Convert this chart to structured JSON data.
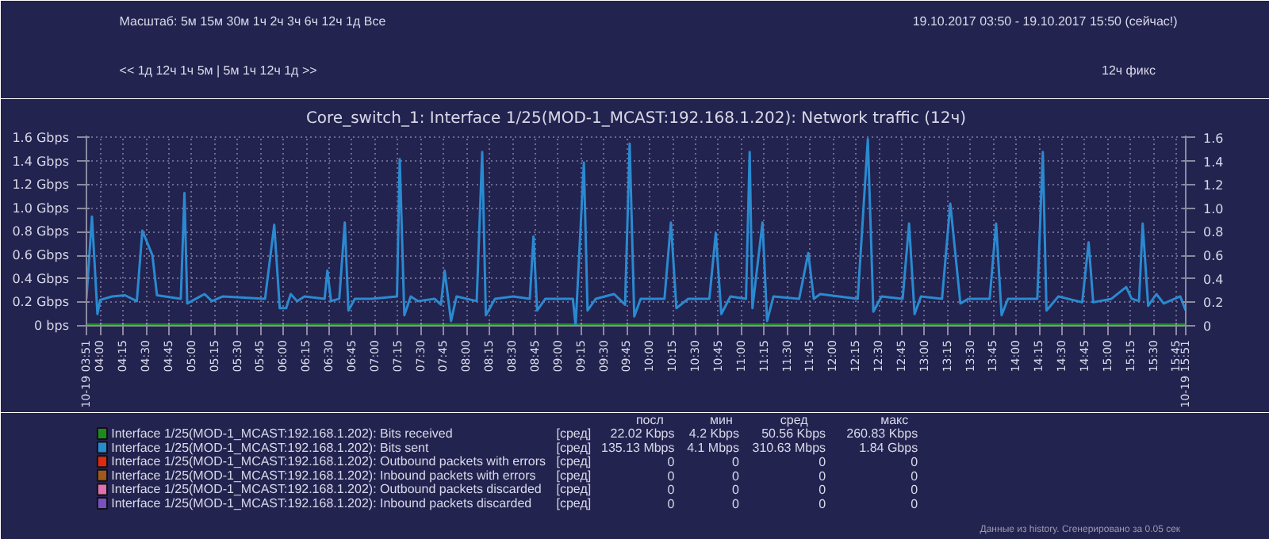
{
  "chart_data": {
    "type": "line",
    "title": "Core_switch_1: Interface 1/25(MOD-1_MCAST:192.168.1.202): Network traffic (12ч)",
    "xlim": [
      3.85,
      15.85
    ],
    "ylim": [
      0,
      1.62
    ],
    "y2lim": [
      0,
      1.62
    ],
    "yticks": [
      {
        "value": 0,
        "label": "0 bps"
      },
      {
        "value": 0.2,
        "label": "0.2 Gbps"
      },
      {
        "value": 0.4,
        "label": "0.4 Gbps"
      },
      {
        "value": 0.6,
        "label": "0.6 Gbps"
      },
      {
        "value": 0.8,
        "label": "0.8 Gbps"
      },
      {
        "value": 1.0,
        "label": "1.0 Gbps"
      },
      {
        "value": 1.2,
        "label": "1.2 Gbps"
      },
      {
        "value": 1.4,
        "label": "1.4 Gbps"
      },
      {
        "value": 1.6,
        "label": "1.6 Gbps"
      }
    ],
    "y2ticks": [
      0,
      0.2,
      0.4,
      0.6,
      0.8,
      {
        "value": 1.0,
        "label": "1.0"
      },
      1.2,
      1.4,
      1.6
    ],
    "xticks": [
      {
        "value": 3.85,
        "label": "10-19 03:51"
      },
      {
        "value": 4.0,
        "label": "04:00"
      },
      {
        "value": 4.25,
        "label": "04:15"
      },
      {
        "value": 4.5,
        "label": "04:30"
      },
      {
        "value": 4.75,
        "label": "04:45"
      },
      {
        "value": 5.0,
        "label": "05:00"
      },
      {
        "value": 5.25,
        "label": "05:15"
      },
      {
        "value": 5.5,
        "label": "05:30"
      },
      {
        "value": 5.75,
        "label": "05:45"
      },
      {
        "value": 6.0,
        "label": "06:00"
      },
      {
        "value": 6.25,
        "label": "06:15"
      },
      {
        "value": 6.5,
        "label": "06:30"
      },
      {
        "value": 6.75,
        "label": "06:45"
      },
      {
        "value": 7.0,
        "label": "07:00"
      },
      {
        "value": 7.25,
        "label": "07:15"
      },
      {
        "value": 7.5,
        "label": "07:30"
      },
      {
        "value": 7.75,
        "label": "07:45"
      },
      {
        "value": 8.0,
        "label": "08:00"
      },
      {
        "value": 8.25,
        "label": "08:15"
      },
      {
        "value": 8.5,
        "label": "08:30"
      },
      {
        "value": 8.75,
        "label": "08:45"
      },
      {
        "value": 9.0,
        "label": "09:00"
      },
      {
        "value": 9.25,
        "label": "09:15"
      },
      {
        "value": 9.5,
        "label": "09:30"
      },
      {
        "value": 9.75,
        "label": "09:45"
      },
      {
        "value": 10.0,
        "label": "10:00"
      },
      {
        "value": 10.25,
        "label": "10:15"
      },
      {
        "value": 10.5,
        "label": "10:30"
      },
      {
        "value": 10.75,
        "label": "10:45"
      },
      {
        "value": 11.0,
        "label": "11:00"
      },
      {
        "value": 11.25,
        "label": "11:15"
      },
      {
        "value": 11.5,
        "label": "11:30"
      },
      {
        "value": 11.75,
        "label": "11:45"
      },
      {
        "value": 12.0,
        "label": "12:00"
      },
      {
        "value": 12.25,
        "label": "12:15"
      },
      {
        "value": 12.5,
        "label": "12:30"
      },
      {
        "value": 12.75,
        "label": "12:45"
      },
      {
        "value": 13.0,
        "label": "13:00"
      },
      {
        "value": 13.25,
        "label": "13:15"
      },
      {
        "value": 13.5,
        "label": "13:30"
      },
      {
        "value": 13.75,
        "label": "13:45"
      },
      {
        "value": 14.0,
        "label": "14:00"
      },
      {
        "value": 14.25,
        "label": "14:15"
      },
      {
        "value": 14.5,
        "label": "14:30"
      },
      {
        "value": 14.75,
        "label": "14:45"
      },
      {
        "value": 15.0,
        "label": "15:00"
      },
      {
        "value": 15.25,
        "label": "15:15"
      },
      {
        "value": 15.5,
        "label": "15:30"
      },
      {
        "value": 15.75,
        "label": "15:45"
      },
      {
        "value": 15.85,
        "label": "10-19 15:51"
      }
    ],
    "grid": true,
    "legend": "bottom",
    "line_style": "solid",
    "series": [
      {
        "name": "Interface 1/25(MOD-1_MCAST:192.168.1.202): Bits received",
        "color": "#1e8a1e",
        "x": [
          3.85,
          15.85
        ],
        "values": [
          0,
          0
        ]
      },
      {
        "name": "Interface 1/25(MOD-1_MCAST:192.168.1.202): Bits sent",
        "color": "#2a8ad0",
        "x": [
          3.85,
          3.91,
          3.97,
          4.0,
          4.13,
          4.27,
          4.4,
          4.46,
          4.57,
          4.62,
          4.88,
          4.92,
          4.95,
          5.14,
          5.22,
          5.34,
          5.8,
          5.9,
          5.96,
          6.03,
          6.08,
          6.15,
          6.23,
          6.45,
          6.48,
          6.52,
          6.61,
          6.67,
          6.71,
          6.78,
          6.96,
          7.24,
          7.27,
          7.32,
          7.39,
          7.47,
          7.65,
          7.72,
          7.76,
          7.83,
          7.89,
          8.11,
          8.17,
          8.21,
          8.31,
          8.51,
          8.69,
          8.73,
          8.77,
          8.86,
          9.16,
          9.19,
          9.28,
          9.32,
          9.41,
          9.61,
          9.73,
          9.78,
          9.83,
          9.9,
          10.16,
          10.23,
          10.29,
          10.42,
          10.65,
          10.72,
          10.78,
          10.88,
          11.05,
          11.09,
          11.12,
          11.23,
          11.28,
          11.35,
          11.63,
          11.73,
          11.79,
          11.86,
          12.27,
          12.38,
          12.44,
          12.53,
          12.76,
          12.83,
          12.89,
          12.96,
          13.19,
          13.28,
          13.39,
          13.48,
          13.71,
          13.78,
          13.84,
          13.91,
          14.23,
          14.29,
          14.33,
          14.46,
          14.72,
          14.79,
          14.84,
          15.04,
          15.2,
          15.26,
          15.34,
          15.38,
          15.44,
          15.53,
          15.61,
          15.79,
          15.85
        ],
        "values": [
          0.23,
          0.93,
          0.1,
          0.22,
          0.25,
          0.26,
          0.21,
          0.81,
          0.6,
          0.26,
          0.23,
          1.13,
          0.19,
          0.27,
          0.21,
          0.25,
          0.23,
          0.86,
          0.15,
          0.15,
          0.27,
          0.21,
          0.25,
          0.23,
          0.47,
          0.21,
          0.23,
          0.88,
          0.13,
          0.23,
          0.23,
          0.25,
          1.42,
          0.09,
          0.25,
          0.21,
          0.23,
          0.18,
          0.47,
          0.04,
          0.25,
          0.21,
          1.48,
          0.09,
          0.23,
          0.25,
          0.23,
          0.76,
          0.13,
          0.23,
          0.23,
          0,
          1.39,
          0.13,
          0.23,
          0.27,
          0.18,
          1.55,
          0.08,
          0.23,
          0.23,
          0.88,
          0.15,
          0.23,
          0.23,
          0.79,
          0.1,
          0.25,
          0.23,
          1.48,
          0.15,
          0.88,
          0.04,
          0.25,
          0.23,
          0.62,
          0.23,
          0.27,
          0.23,
          1.59,
          0.12,
          0.25,
          0.23,
          0.87,
          0.1,
          0.25,
          0.23,
          1.04,
          0.19,
          0.23,
          0.23,
          0.87,
          0.09,
          0.23,
          0.23,
          1.48,
          0.13,
          0.25,
          0.2,
          0.71,
          0.2,
          0.23,
          0.33,
          0.23,
          0.21,
          0.87,
          0.17,
          0.27,
          0.19,
          0.25,
          0.13
        ]
      },
      {
        "name": "Interface 1/25(MOD-1_MCAST:192.168.1.202): Outbound packets with errors",
        "color": "#e02a10"
      },
      {
        "name": "Interface 1/25(MOD-1_MCAST:192.168.1.202): Inbound packets with errors",
        "color": "#a0581e"
      },
      {
        "name": "Interface 1/25(MOD-1_MCAST:192.168.1.202): Outbound packets discarded",
        "color": "#e070b0"
      },
      {
        "name": "Interface 1/25(MOD-1_MCAST:192.168.1.202): Inbound packets discarded",
        "color": "#7a50c0"
      }
    ],
    "annotations": [
      "Масштаб: 5м 15м 30м 1ч 2ч 3ч 6ч 12ч 1д Все",
      "19.10.2017 03:50 - 19.10.2017 15:50 (сейчас!)",
      "<< 1д 12ч 1ч 5м | 5м 1ч 12ч 1д >>",
      "12ч фикс",
      "Данные из history. Сгенерировано за 0.05 сек",
      "посл",
      "мин",
      "сред",
      "макс",
      "[сред]",
      "22.02 Kbps",
      "4.2 Kbps",
      "50.56 Kbps",
      "260.83 Kbps",
      "[сред]",
      "135.13 Mbps",
      "4.1 Mbps",
      "310.63 Mbps",
      "1.84 Gbps",
      "[сред]",
      "0",
      "0",
      "0",
      "0",
      "[сред]",
      "0",
      "0",
      "0",
      "0",
      "[сред]",
      "0",
      "0",
      "0",
      "0",
      "[сред]",
      "0",
      "0",
      "0",
      "0"
    ]
  }
}
